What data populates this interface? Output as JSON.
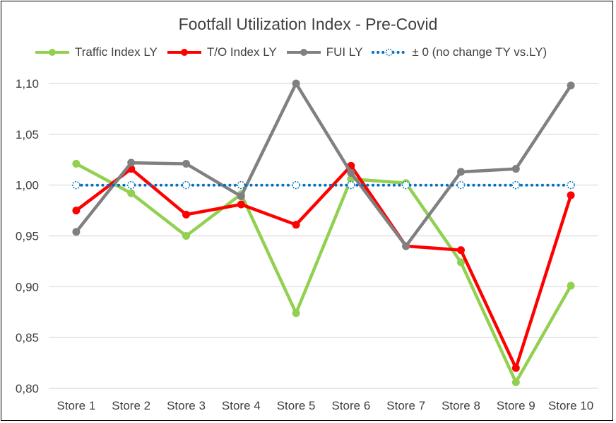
{
  "chart_data": {
    "type": "line",
    "title": "Footfall Utilization Index - Pre-Covid",
    "categories": [
      "Store 1",
      "Store 2",
      "Store 3",
      "Store 4",
      "Store 5",
      "Store 6",
      "Store 7",
      "Store 8",
      "Store 9",
      "Store 10"
    ],
    "ylim": [
      0.8,
      1.1
    ],
    "yticks": [
      "0,80",
      "0,85",
      "0,90",
      "0,95",
      "1,00",
      "1,05",
      "1,10"
    ],
    "ytick_values": [
      0.8,
      0.85,
      0.9,
      0.95,
      1.0,
      1.05,
      1.1
    ],
    "grid": true,
    "legend_position": "top",
    "series": [
      {
        "name": "Traffic Index LY",
        "color": "#92d050",
        "style": "solid",
        "values": [
          1.021,
          0.992,
          0.95,
          0.991,
          0.874,
          1.006,
          1.002,
          0.924,
          0.806,
          0.901
        ]
      },
      {
        "name": "T/O Index LY",
        "color": "#ff0000",
        "style": "solid",
        "values": [
          0.975,
          1.016,
          0.971,
          0.981,
          0.961,
          1.019,
          0.94,
          0.936,
          0.82,
          0.99
        ]
      },
      {
        "name": "FUI LY",
        "color": "#808080",
        "style": "solid",
        "values": [
          0.954,
          1.022,
          1.021,
          0.989,
          1.1,
          1.012,
          0.94,
          1.013,
          1.016,
          1.098
        ]
      },
      {
        "name": "± 0 (no change TY vs.LY)",
        "color": "#0070c0",
        "style": "dotted",
        "values": [
          1.0,
          1.0,
          1.0,
          1.0,
          1.0,
          1.0,
          1.0,
          1.0,
          1.0,
          1.0
        ]
      }
    ]
  }
}
